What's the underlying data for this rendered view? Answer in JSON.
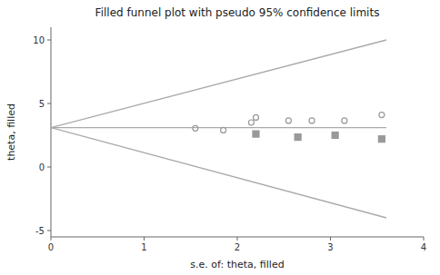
{
  "chart_data": {
    "type": "scatter",
    "title": "Filled funnel plot with pseudo 95% confidence limits",
    "xlabel": "s.e. of: theta, filled",
    "ylabel": "theta, filled",
    "xlim": [
      0,
      4
    ],
    "ylim": [
      -5.5,
      11
    ],
    "xticks": [
      0,
      1,
      2,
      3,
      4
    ],
    "yticks": [
      -5,
      0,
      5,
      10
    ],
    "grid": false,
    "series": [
      {
        "type": "line",
        "color": "#aaaaaa",
        "x": [
          0,
          3.6
        ],
        "values": [
          3.1,
          10.0
        ]
      },
      {
        "type": "line",
        "color": "#aaaaaa",
        "x": [
          0,
          3.6
        ],
        "values": [
          3.1,
          -4.0
        ]
      },
      {
        "type": "line",
        "color": "#aaaaaa",
        "x": [
          0,
          3.6
        ],
        "values": [
          3.1,
          3.1
        ]
      },
      {
        "type": "scatter",
        "marker": "circle-open",
        "color": "#999999",
        "x": [
          1.55,
          1.85,
          2.15,
          2.2,
          2.55,
          2.8,
          3.15,
          3.55
        ],
        "values": [
          3.05,
          2.9,
          3.5,
          3.9,
          3.65,
          3.65,
          3.65,
          4.1
        ]
      },
      {
        "type": "scatter",
        "marker": "square",
        "color": "#999999",
        "x": [
          2.2,
          2.65,
          3.05,
          3.55
        ],
        "values": [
          2.6,
          2.35,
          2.5,
          2.2
        ]
      }
    ]
  }
}
